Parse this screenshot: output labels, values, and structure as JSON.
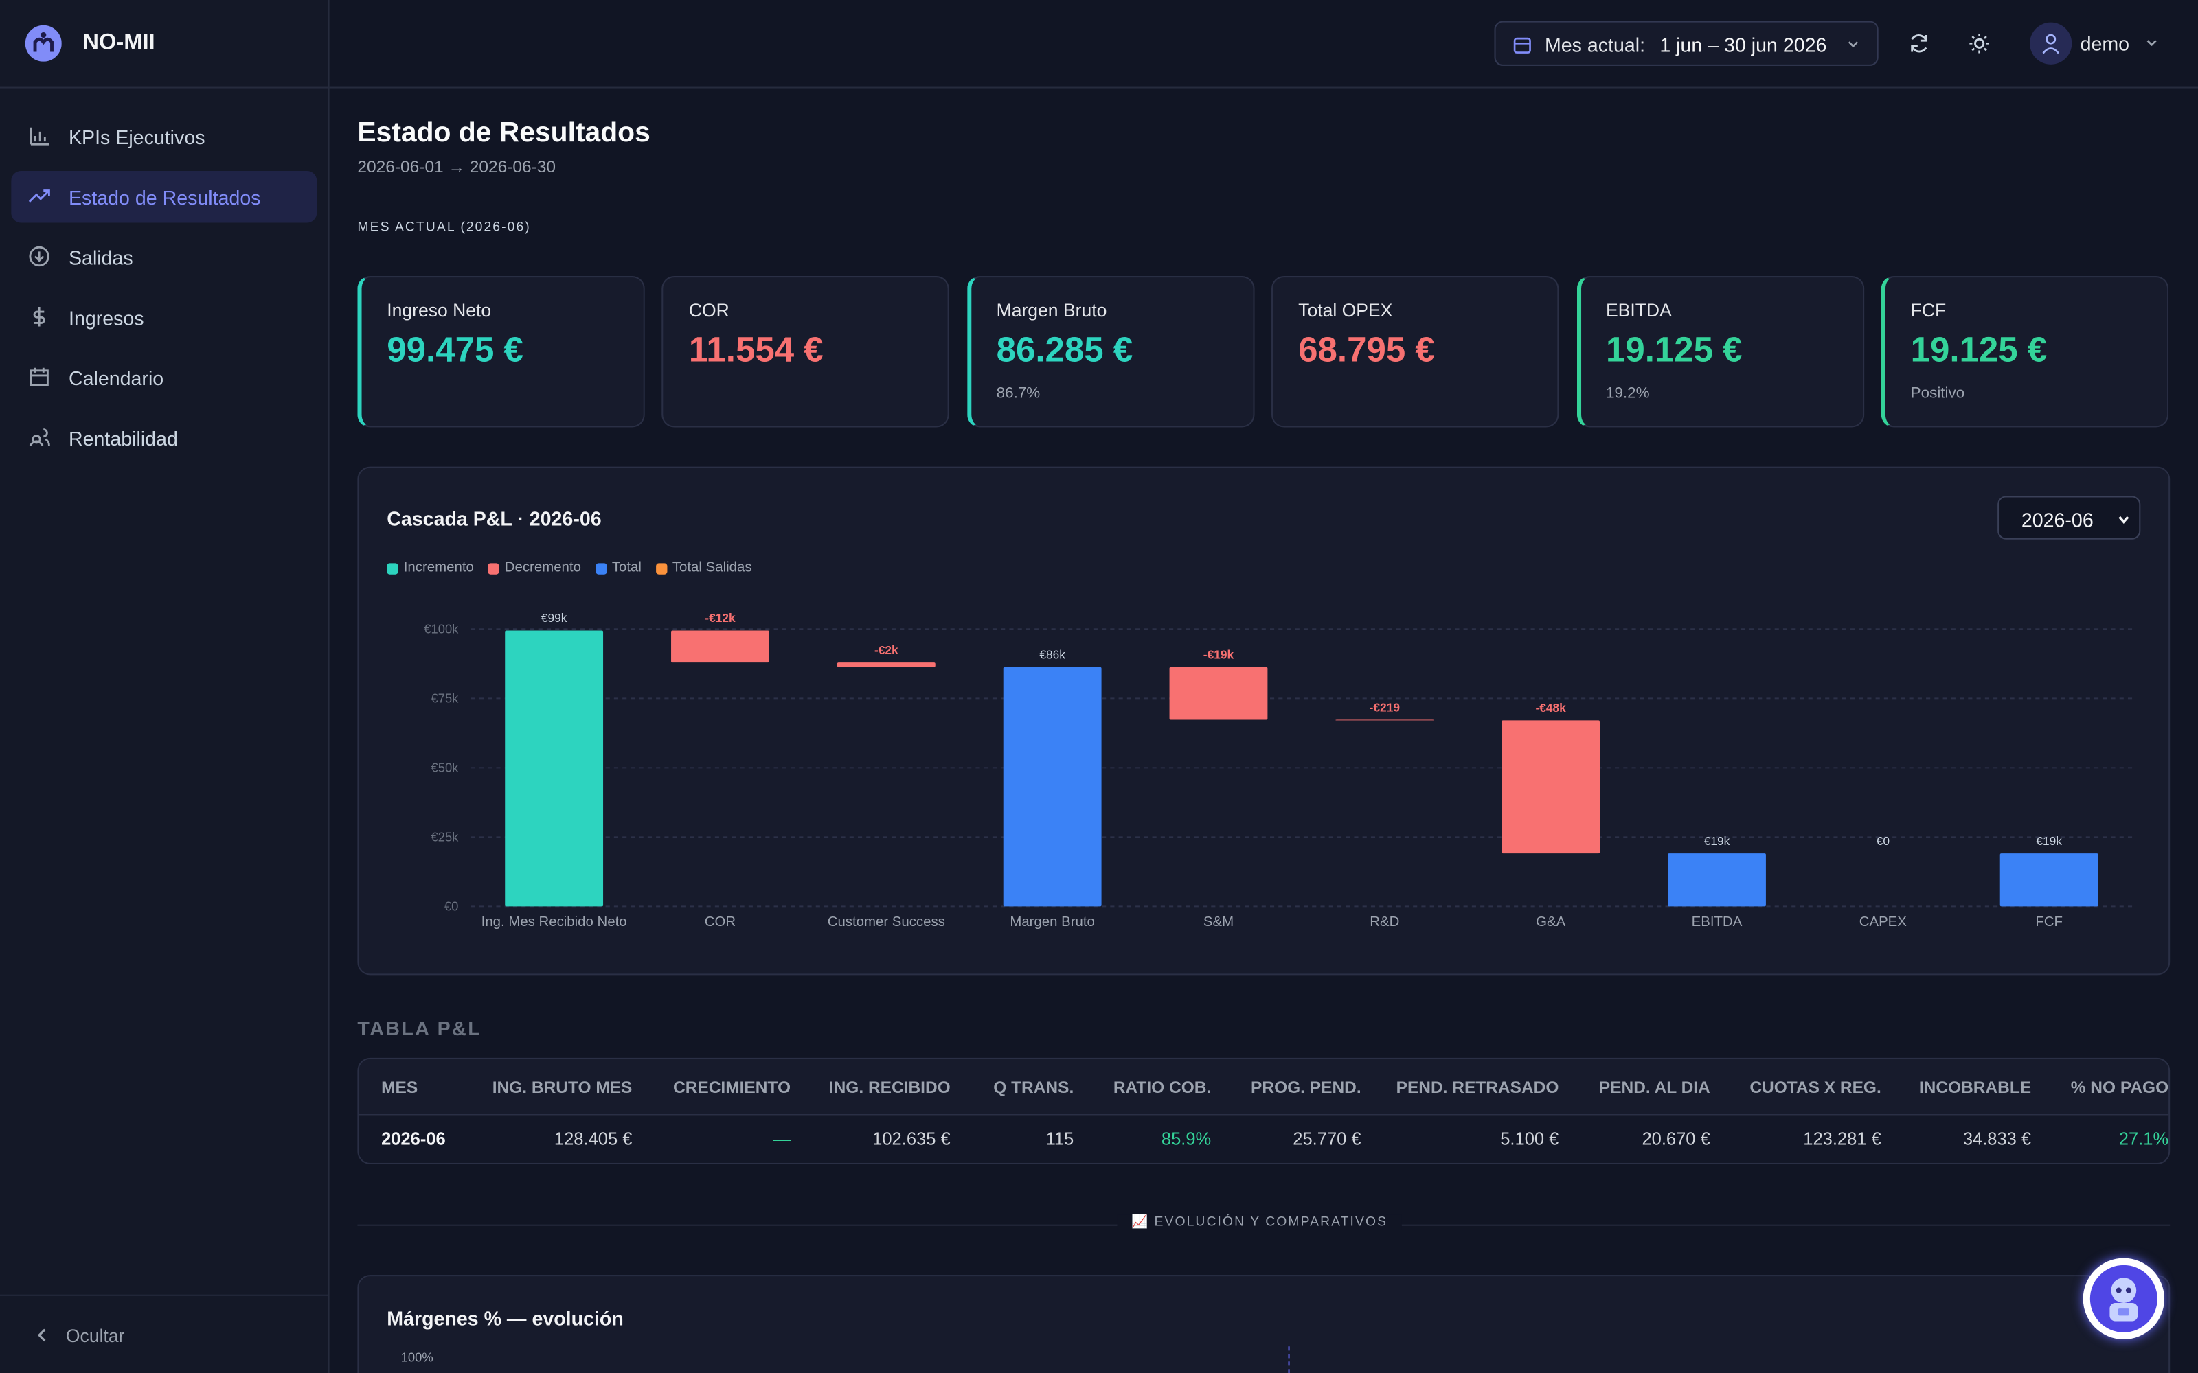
{
  "app": {
    "brand": "NO-MII",
    "nav": [
      "KPIs Ejecutivos",
      "Estado de Resultados",
      "Salidas",
      "Ingresos",
      "Calendario",
      "Rentabilidad"
    ],
    "active_nav": 1,
    "collapse": "Ocultar"
  },
  "header": {
    "period_label": "Mes actual:",
    "period": "1 jun – 30 jun 2026",
    "user": "demo"
  },
  "page": {
    "title": "Estado de Resultados",
    "range": "2026-06-01 → 2026-06-30",
    "section": "MES ACTUAL (2026-06)"
  },
  "kpis": [
    {
      "label": "Ingreso Neto",
      "value": "99.475 €",
      "color": "#2dd4bf",
      "accent": true
    },
    {
      "label": "COR",
      "value": "11.554 €",
      "color": "#f87171",
      "accent": false
    },
    {
      "label": "Margen Bruto",
      "value": "86.285 €",
      "note": "86.7%",
      "color": "#2dd4bf",
      "accent": true
    },
    {
      "label": "Total OPEX",
      "value": "68.795 €",
      "color": "#f87171",
      "accent": false
    },
    {
      "label": "EBITDA",
      "value": "19.125 €",
      "note": "19.2%",
      "color": "#34d399",
      "accent": true
    },
    {
      "label": "FCF",
      "value": "19.125 €",
      "note": "Positivo",
      "color": "#34d399",
      "accent": true
    }
  ],
  "chart_data": {
    "type": "waterfall",
    "title": "Cascada P&L · 2026-06",
    "selector": "2026-06",
    "categories": [
      "Ing. Mes Recibido Neto",
      "COR",
      "Customer Success",
      "Margen Bruto",
      "S&M",
      "R&D",
      "G&A",
      "EBITDA",
      "CAPEX",
      "FCF"
    ],
    "values": [
      99475,
      -11554,
      -1636,
      86285,
      -19000,
      -219,
      -47941,
      19125,
      0,
      19125
    ],
    "value_labels": [
      "€99k",
      "-€12k",
      "-€2k",
      "€86k",
      "-€19k",
      "-€219",
      "-€48k",
      "€19k",
      "€0",
      "€19k"
    ],
    "totals": [
      false,
      false,
      false,
      true,
      false,
      false,
      false,
      true,
      false,
      true
    ],
    "legend": [
      {
        "name": "Incremento",
        "color": "#2dd4bf"
      },
      {
        "name": "Decremento",
        "color": "#f87171"
      },
      {
        "name": "Total",
        "color": "#3b82f6"
      },
      {
        "name": "Total Salidas",
        "color": "#fb923c"
      }
    ],
    "ylim": [
      0,
      100000
    ],
    "yticks": [
      {
        "value": 0,
        "label": "€0"
      },
      {
        "value": 25000,
        "label": "€25k"
      },
      {
        "value": 50000,
        "label": "€50k"
      },
      {
        "value": 75000,
        "label": "€75k"
      },
      {
        "value": 100000,
        "label": "€100k"
      }
    ],
    "grid": true
  },
  "table": {
    "title": "TABLA P&L",
    "columns": [
      "MES",
      "ING. BRUTO MES",
      "CRECIMIENTO",
      "ING. RECIBIDO",
      "Q TRANS.",
      "RATIO COB.",
      "PROG. PEND.",
      "PEND. RETRASADO",
      "PEND. AL DIA",
      "CUOTAS X REG.",
      "INCOBRABLE",
      "% NO PAGO"
    ],
    "rows": [
      [
        "2026-06",
        "128.405 €",
        "—",
        "102.635 €",
        "115",
        "85.9%",
        "25.770 €",
        "5.100 €",
        "20.670 €",
        "123.281 €",
        "34.833 €",
        "27.1%"
      ]
    ]
  },
  "evolution": {
    "divider": "📈 EVOLUCIÓN Y COMPARATIVOS",
    "chart_title": "Márgenes % — evolución",
    "top_tick": "100%"
  }
}
